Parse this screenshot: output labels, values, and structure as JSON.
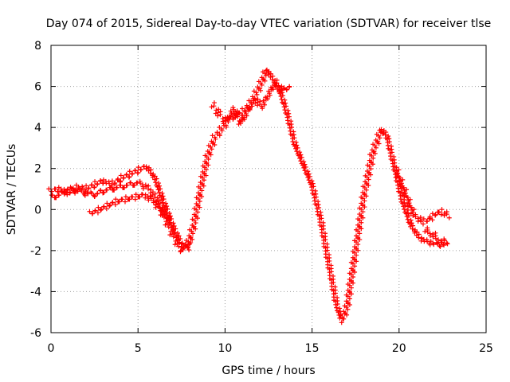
{
  "chart_data": {
    "type": "scatter",
    "title": "Day 074 of 2015, Sidereal Day-to-day VTEC variation (SDTVAR) for receiver tlse",
    "xlabel": "GPS time / hours",
    "ylabel": "SDTVAR / TECUs",
    "xlim": [
      0,
      25
    ],
    "ylim": [
      -6,
      8
    ],
    "x_ticks": [
      0,
      5,
      10,
      15,
      20,
      25
    ],
    "y_ticks": [
      -6,
      -4,
      -2,
      0,
      2,
      4,
      6,
      8
    ],
    "grid": true,
    "marker": "plus",
    "color": "#ff0000",
    "series": [
      {
        "x": [
          0.0,
          0.5,
          1.0,
          1.5,
          2.0,
          2.5,
          3.0,
          3.5,
          4.0,
          4.5,
          5.0,
          5.5,
          6.0,
          6.5,
          7.0,
          7.5,
          7.8,
          8.2,
          8.6,
          9.0,
          9.4,
          9.8,
          10.2,
          10.6,
          11.0,
          11.5,
          12.0,
          12.4,
          12.8,
          13.2,
          13.6,
          14.0,
          14.5,
          15.0,
          15.5,
          16.0,
          16.4,
          16.7,
          17.0,
          17.5,
          18.0,
          18.5,
          19.0,
          19.3,
          19.7,
          20.2,
          20.7,
          21.2,
          21.7,
          22.2,
          22.7
        ],
        "y": [
          0.9,
          1.0,
          0.8,
          1.1,
          1.0,
          1.2,
          1.4,
          1.2,
          1.5,
          1.7,
          1.9,
          2.1,
          1.5,
          0.3,
          -0.8,
          -1.7,
          -1.9,
          -0.8,
          1.0,
          2.6,
          3.5,
          3.9,
          4.4,
          4.6,
          4.7,
          5.2,
          6.0,
          6.8,
          6.3,
          5.7,
          4.6,
          3.2,
          2.2,
          1.2,
          -0.5,
          -2.8,
          -4.6,
          -5.4,
          -4.8,
          -2.0,
          0.8,
          2.8,
          3.9,
          3.6,
          2.2,
          0.4,
          -0.8,
          -1.4,
          -1.6,
          -1.7,
          -1.7
        ]
      },
      {
        "x": [
          0.0,
          0.5,
          1.0,
          1.5,
          2.0,
          2.5,
          3.0,
          3.5,
          4.0,
          4.5,
          5.0,
          5.5,
          6.0,
          6.5,
          7.0,
          7.5,
          8.0
        ],
        "y": [
          0.6,
          0.7,
          1.0,
          0.9,
          0.8,
          0.7,
          0.9,
          1.0,
          1.1,
          1.2,
          1.3,
          1.1,
          0.6,
          -0.3,
          -1.2,
          -2.0,
          -1.6
        ]
      },
      {
        "x": [
          2.3,
          2.8,
          3.3,
          3.8,
          4.3,
          4.8,
          5.3,
          5.8,
          6.3,
          6.8
        ],
        "y": [
          -0.2,
          0.0,
          0.2,
          0.4,
          0.5,
          0.6,
          0.7,
          0.5,
          0.0,
          -0.5
        ]
      },
      {
        "x": [
          9.3,
          9.7,
          10.1,
          10.5,
          10.9,
          11.3,
          11.7,
          12.1,
          12.5,
          12.9,
          13.3,
          13.7
        ],
        "y": [
          5.1,
          4.6,
          4.3,
          4.9,
          4.2,
          4.8,
          5.4,
          5.0,
          5.6,
          6.2,
          5.8,
          6.0
        ]
      },
      {
        "x": [
          19.8,
          20.3,
          20.8,
          21.3,
          21.7,
          22.1,
          22.5,
          22.8
        ],
        "y": [
          2.0,
          0.9,
          -0.2,
          -0.6,
          -0.5,
          -0.2,
          -0.1,
          -0.3
        ]
      },
      {
        "x": [
          21.5,
          21.9,
          22.3,
          22.7
        ],
        "y": [
          -1.0,
          -1.2,
          -1.5,
          -1.6
        ]
      }
    ]
  }
}
